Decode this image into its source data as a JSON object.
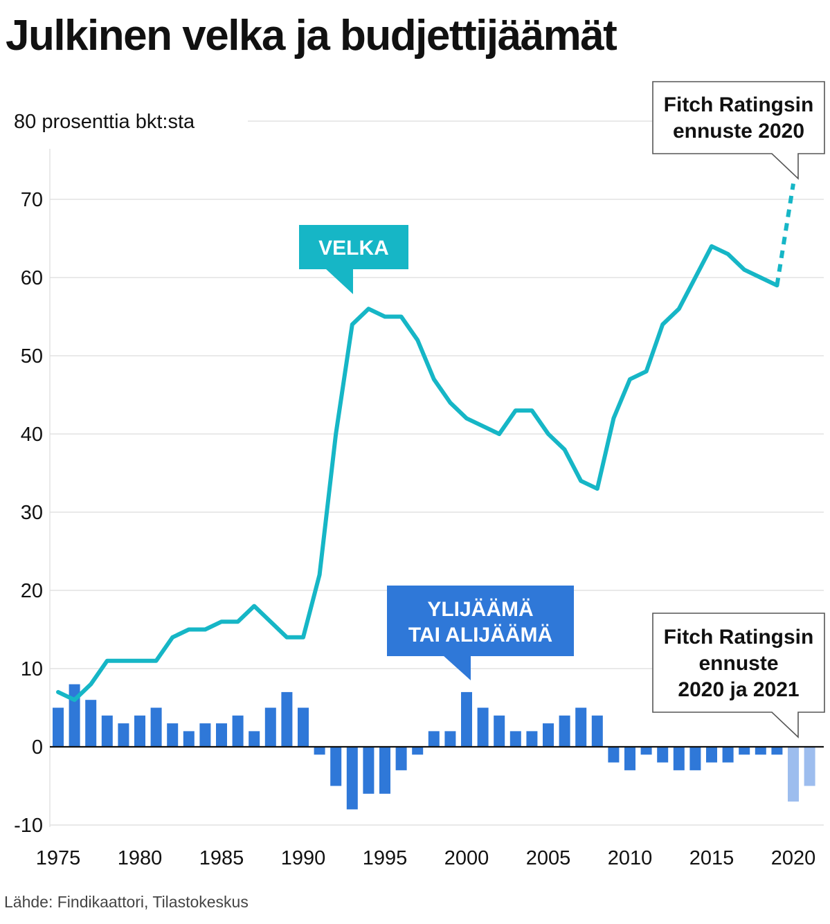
{
  "title": "Julkinen velka ja budjettijäämät",
  "source": "Lähde: Findikaattori, Tilastokeskus",
  "chart_data": {
    "type": "bar",
    "ylabel": "80 prosenttia bkt:sta",
    "ylim": [
      -10,
      80
    ],
    "y_ticks": [
      -10,
      0,
      10,
      20,
      30,
      40,
      50,
      60,
      70
    ],
    "y_tick_labels": [
      "-10",
      "0",
      "10",
      "20",
      "30",
      "40",
      "50",
      "60",
      "70"
    ],
    "x_ticks": [
      1975,
      1980,
      1985,
      1990,
      1995,
      2000,
      2005,
      2010,
      2015,
      2020
    ],
    "x_tick_labels": [
      "1975",
      "1980",
      "1985",
      "1990",
      "1995",
      "2000",
      "2005",
      "2010",
      "2015",
      "2020"
    ],
    "grid": true,
    "colors": {
      "debt": "#16b6c6",
      "balance": "#2f78d8",
      "forecast_balance": "#9dbdee",
      "debt_label_bg": "#16b6c6",
      "balance_label_bg": "#2f78d8"
    },
    "series": [
      {
        "name": "VELKA",
        "type": "line",
        "x": [
          1975,
          1976,
          1977,
          1978,
          1979,
          1980,
          1981,
          1982,
          1983,
          1984,
          1985,
          1986,
          1987,
          1988,
          1989,
          1990,
          1991,
          1992,
          1993,
          1994,
          1995,
          1996,
          1997,
          1998,
          1999,
          2000,
          2001,
          2002,
          2003,
          2004,
          2005,
          2006,
          2007,
          2008,
          2009,
          2010,
          2011,
          2012,
          2013,
          2014,
          2015,
          2016,
          2017,
          2018,
          2019
        ],
        "values": [
          7,
          6,
          8,
          11,
          11,
          11,
          11,
          14,
          15,
          15,
          16,
          16,
          18,
          16,
          14,
          14,
          22,
          40,
          54,
          56,
          55,
          55,
          52,
          47,
          44,
          42,
          41,
          40,
          43,
          43,
          40,
          38,
          34,
          33,
          42,
          47,
          48,
          54,
          56,
          60,
          64,
          63,
          61,
          60,
          59
        ],
        "forecast": {
          "x": [
            2019,
            2020
          ],
          "values": [
            59,
            72
          ]
        }
      },
      {
        "name": "YLIJÄÄMÄ TAI ALIJÄÄMÄ",
        "type": "bar",
        "x": [
          1975,
          1976,
          1977,
          1978,
          1979,
          1980,
          1981,
          1982,
          1983,
          1984,
          1985,
          1986,
          1987,
          1988,
          1989,
          1990,
          1991,
          1992,
          1993,
          1994,
          1995,
          1996,
          1997,
          1998,
          1999,
          2000,
          2001,
          2002,
          2003,
          2004,
          2005,
          2006,
          2007,
          2008,
          2009,
          2010,
          2011,
          2012,
          2013,
          2014,
          2015,
          2016,
          2017,
          2018,
          2019
        ],
        "values": [
          5,
          8,
          6,
          4,
          3,
          4,
          5,
          3,
          2,
          3,
          3,
          4,
          2,
          5,
          7,
          5,
          -1,
          -5,
          -8,
          -6,
          -6,
          -3,
          -1,
          2,
          2,
          7,
          5,
          4,
          2,
          2,
          3,
          4,
          5,
          4,
          -2,
          -3,
          -1,
          -2,
          -3,
          -3,
          -2,
          -2,
          -1,
          -1,
          -1
        ],
        "forecast": {
          "x": [
            2020,
            2021
          ],
          "values": [
            -7,
            -5
          ]
        }
      }
    ],
    "annotations": [
      {
        "id": "debt-label",
        "text": [
          "VELKA"
        ]
      },
      {
        "id": "balance-label",
        "text": [
          "YLIJÄÄMÄ",
          "TAI ALIJÄÄMÄ"
        ]
      },
      {
        "id": "debt-forecast-note",
        "text": [
          "Fitch Ratingsin",
          "ennuste 2020"
        ]
      },
      {
        "id": "balance-forecast-note",
        "text": [
          "Fitch Ratingsin",
          "ennuste",
          "2020 ja 2021"
        ]
      }
    ]
  }
}
